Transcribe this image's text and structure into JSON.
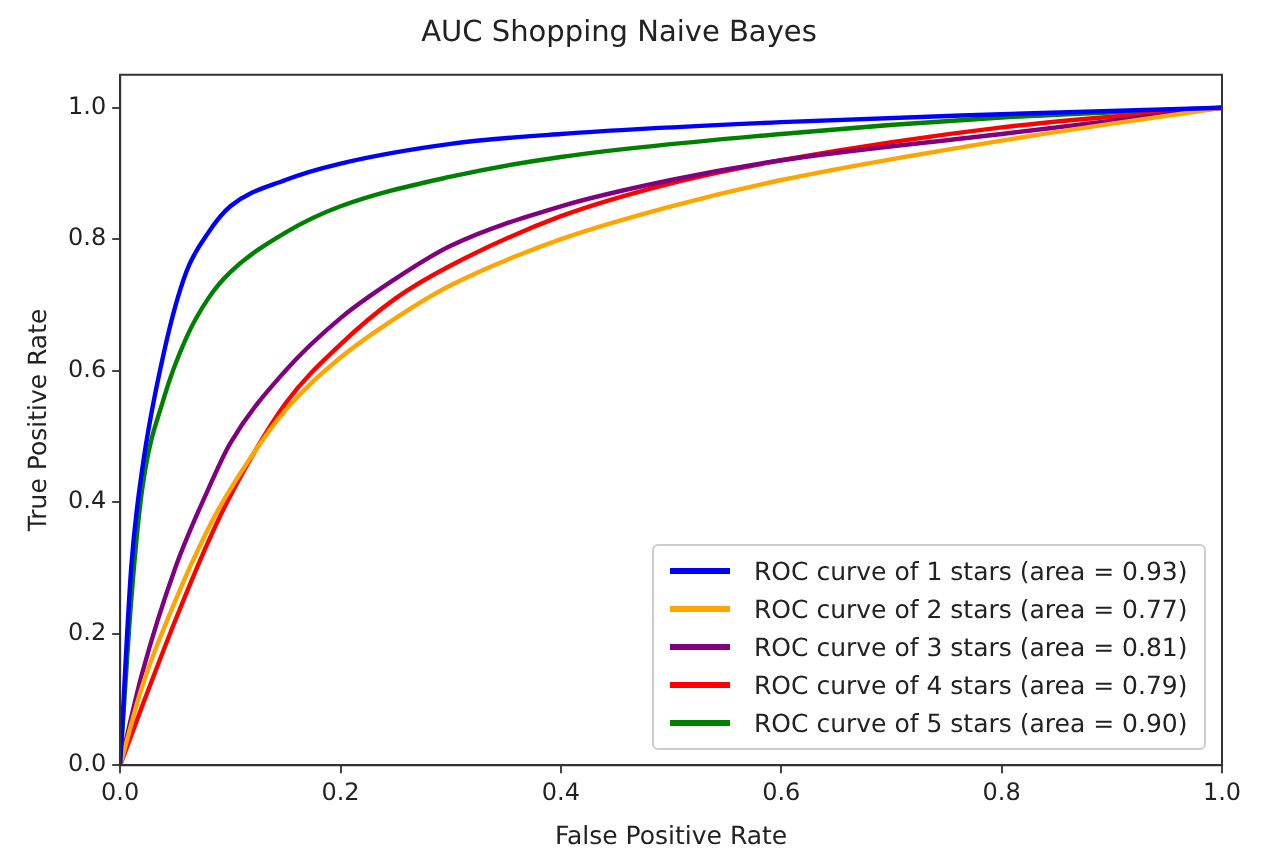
{
  "chart_data": {
    "type": "line",
    "title": "AUC Shopping Naive Bayes",
    "xlabel": "False Positive Rate",
    "ylabel": "True Positive Rate",
    "xlim": [
      0,
      1
    ],
    "ylim": [
      0,
      1.05
    ],
    "xticks": [
      {
        "value": 0,
        "label": "0.0"
      },
      {
        "value": 0.2,
        "label": "0.2"
      },
      {
        "value": 0.4,
        "label": "0.4"
      },
      {
        "value": 0.6,
        "label": "0.6"
      },
      {
        "value": 0.8,
        "label": "0.8"
      },
      {
        "value": 1,
        "label": "1.0"
      }
    ],
    "yticks": [
      {
        "value": 0,
        "label": "0.0"
      },
      {
        "value": 0.2,
        "label": "0.2"
      },
      {
        "value": 0.4,
        "label": "0.4"
      },
      {
        "value": 0.6,
        "label": "0.6"
      },
      {
        "value": 0.8,
        "label": "0.8"
      },
      {
        "value": 1,
        "label": "1.0"
      }
    ],
    "grid": false,
    "legend": "bottom right",
    "marker": "none",
    "line_style": "solid",
    "series": [
      {
        "name": "ROC curve of 1 stars (area = 0.93)",
        "color": "#0000ff",
        "x": [
          0,
          0.01,
          0.02,
          0.04,
          0.06,
          0.08,
          0.1,
          0.15,
          0.2,
          0.3,
          0.4,
          0.6,
          0.8,
          1
        ],
        "values": [
          0,
          0.3,
          0.45,
          0.63,
          0.75,
          0.81,
          0.85,
          0.89,
          0.915,
          0.945,
          0.96,
          0.978,
          0.99,
          1
        ]
      },
      {
        "name": "ROC curve of 2 stars (area = 0.77)",
        "color": "#ffa500",
        "x": [
          0,
          0.02,
          0.05,
          0.08,
          0.1,
          0.15,
          0.2,
          0.25,
          0.3,
          0.4,
          0.5,
          0.6,
          0.8,
          1
        ],
        "values": [
          0,
          0.12,
          0.25,
          0.36,
          0.42,
          0.54,
          0.62,
          0.68,
          0.73,
          0.8,
          0.85,
          0.89,
          0.95,
          1
        ]
      },
      {
        "name": "ROC curve of 3 stars (area = 0.81)",
        "color": "#800080",
        "x": [
          0,
          0.02,
          0.05,
          0.08,
          0.1,
          0.15,
          0.2,
          0.25,
          0.3,
          0.4,
          0.5,
          0.6,
          0.8,
          1
        ],
        "values": [
          0,
          0.14,
          0.3,
          0.42,
          0.49,
          0.6,
          0.68,
          0.74,
          0.79,
          0.85,
          0.89,
          0.92,
          0.96,
          1
        ]
      },
      {
        "name": "ROC curve of 4 stars (area = 0.79)",
        "color": "#ff0000",
        "x": [
          0,
          0.02,
          0.05,
          0.08,
          0.1,
          0.15,
          0.2,
          0.25,
          0.3,
          0.4,
          0.5,
          0.6,
          0.8,
          1
        ],
        "values": [
          0,
          0.09,
          0.22,
          0.34,
          0.41,
          0.55,
          0.64,
          0.71,
          0.76,
          0.835,
          0.885,
          0.92,
          0.97,
          1
        ]
      },
      {
        "name": "ROC curve of 5 stars (area = 0.90)",
        "color": "#008000",
        "x": [
          0,
          0.01,
          0.02,
          0.04,
          0.06,
          0.08,
          0.1,
          0.15,
          0.2,
          0.3,
          0.4,
          0.6,
          0.8,
          1
        ],
        "values": [
          0,
          0.25,
          0.42,
          0.56,
          0.65,
          0.71,
          0.75,
          0.81,
          0.85,
          0.895,
          0.925,
          0.96,
          0.985,
          1
        ]
      }
    ]
  }
}
